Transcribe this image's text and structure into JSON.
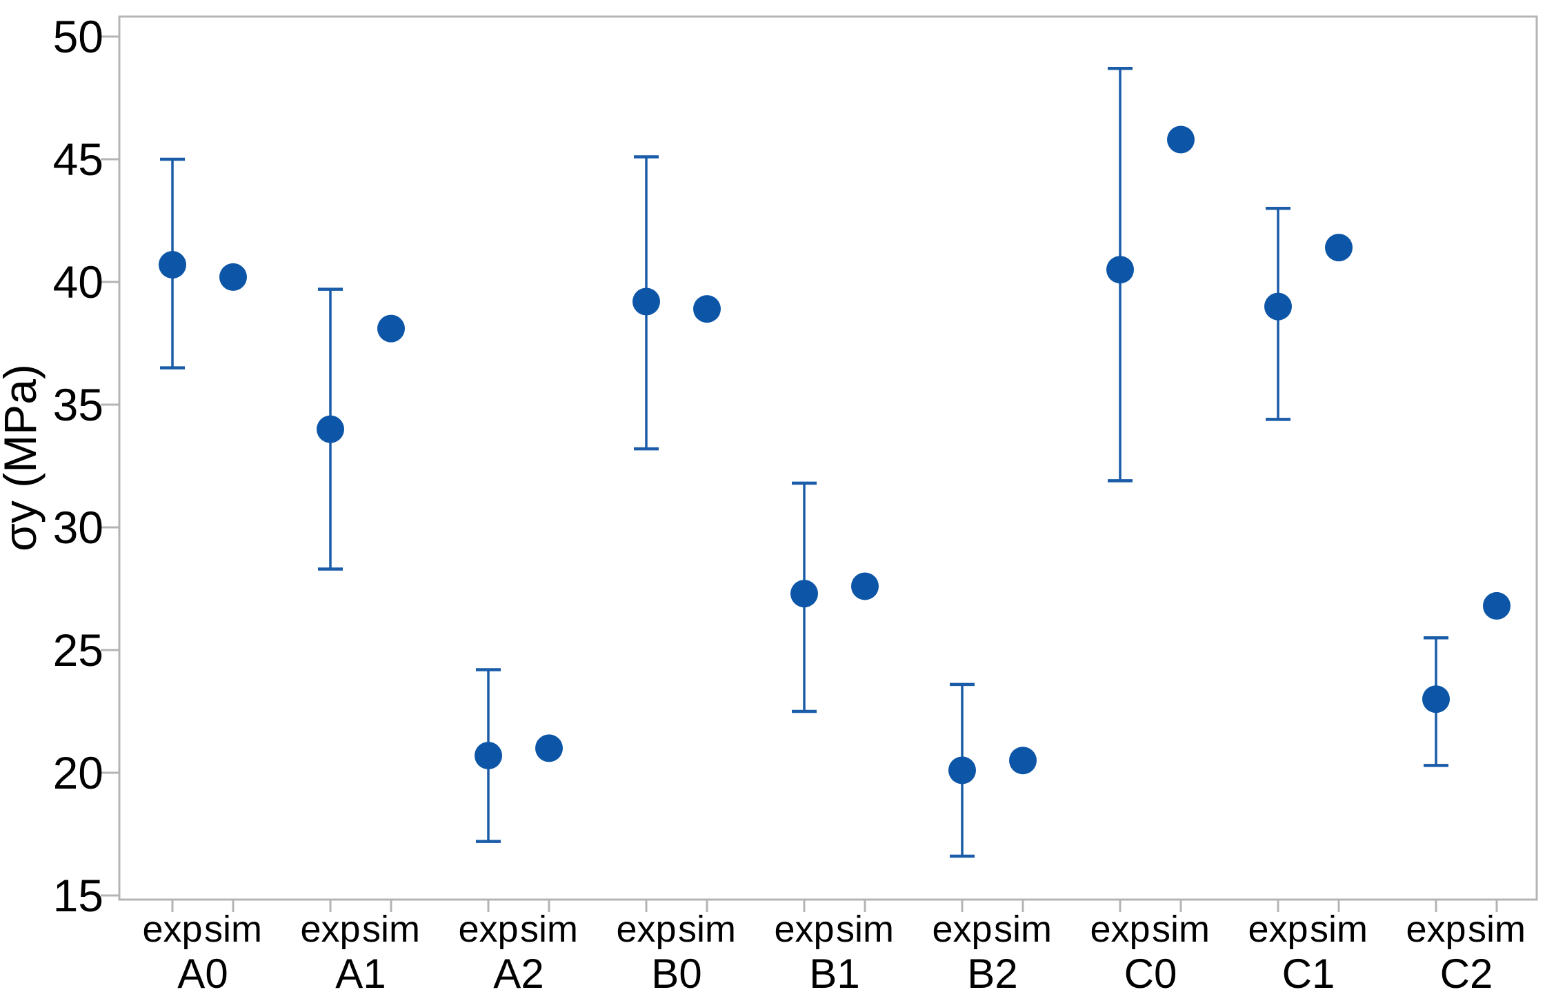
{
  "chart_data": {
    "type": "scatter",
    "title": "",
    "xlabel": "",
    "ylabel": "σy (MPa)",
    "ylim": [
      14.8,
      50.8
    ],
    "yticks": [
      15,
      20,
      25,
      30,
      35,
      40,
      45,
      50
    ],
    "grid": false,
    "legend": "none",
    "frame": true,
    "categories": [
      "A0",
      "A1",
      "A2",
      "B0",
      "B1",
      "B2",
      "C0",
      "C1",
      "C2"
    ],
    "point_sublabels": [
      "exp",
      "sim"
    ],
    "series": [
      {
        "name": "exp",
        "values": [
          40.7,
          34.0,
          20.7,
          39.2,
          27.3,
          20.1,
          40.5,
          39.0,
          23.0
        ],
        "error_low": [
          36.5,
          28.3,
          17.2,
          33.2,
          22.5,
          16.6,
          31.9,
          34.4,
          20.3
        ],
        "error_high": [
          45.0,
          39.7,
          24.2,
          45.1,
          31.8,
          23.6,
          48.7,
          43.0,
          25.5
        ]
      },
      {
        "name": "sim",
        "values": [
          40.2,
          38.1,
          21.0,
          38.9,
          27.6,
          20.5,
          45.8,
          41.4,
          26.8
        ]
      }
    ],
    "colors": {
      "marker": "#0d56a7",
      "error_bar": "#1a5ca8",
      "axis_frame": "#b4b4b4",
      "tick_mark": "#b4b4b4",
      "text": "#000000",
      "background": "#ffffff"
    }
  }
}
